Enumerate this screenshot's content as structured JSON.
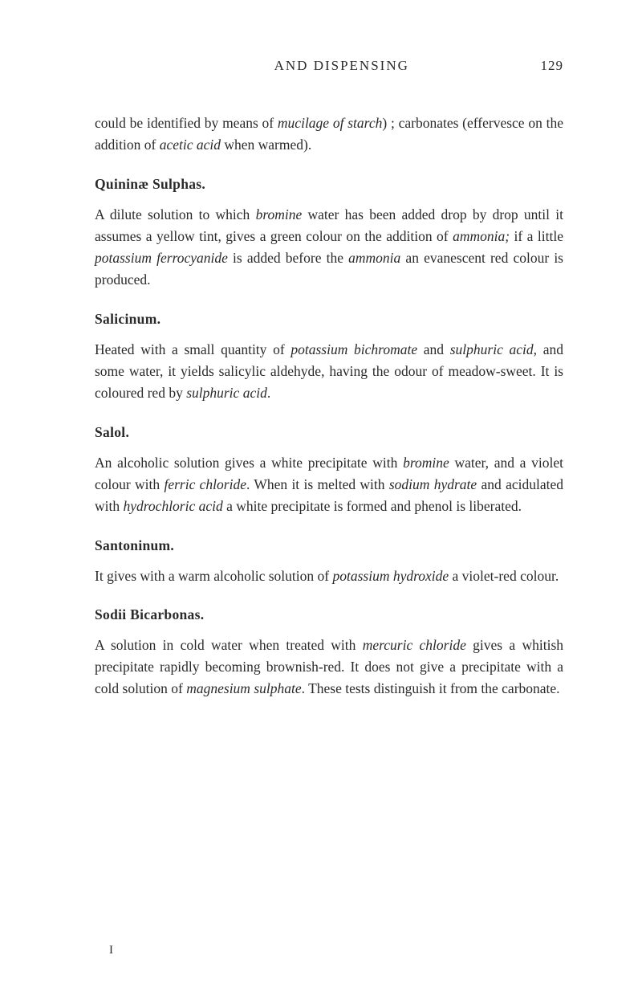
{
  "header": {
    "running_title": "AND DISPENSING",
    "page_number": "129"
  },
  "intro_paragraph": {
    "text_before_italic1": "could be identified by means of ",
    "italic1": "mucilage of starch",
    "text_after_italic1": ") ; carbonates (effervesce on the addition of ",
    "italic2": "acetic acid",
    "text_after_italic2": " when warmed)."
  },
  "sections": {
    "quininae": {
      "heading": "Quininæ Sulphas.",
      "p1_t1": "A dilute solution to which ",
      "p1_i1": "bromine",
      "p1_t2": " water has been added drop by drop until it assumes a yellow tint, gives a green colour on the addition of ",
      "p1_i2": "ammonia;",
      "p1_t3": " if a little ",
      "p1_i3": "potassium ferrocyanide",
      "p1_t4": " is added before the ",
      "p1_i4": "ammonia",
      "p1_t5": " an evanescent red colour is produced."
    },
    "salicinum": {
      "heading": "Salicinum.",
      "p1_t1": "Heated with a small quantity of ",
      "p1_i1": "potassium bichromate",
      "p1_t2": " and ",
      "p1_i2": "sulphuric acid",
      "p1_t3": ", and some water, it yields salicylic aldehyde, having the odour of meadow-sweet. It is coloured red by ",
      "p1_i3": "sulphuric acid",
      "p1_t4": "."
    },
    "salol": {
      "heading": "Salol.",
      "p1_t1": "An alcoholic solution gives a white precipitate with ",
      "p1_i1": "bromine",
      "p1_t2": " water, and a violet colour with ",
      "p1_i2": "ferric chloride",
      "p1_t3": ". When it is melted with ",
      "p1_i3": "sodium hydrate",
      "p1_t4": " and acidulated with ",
      "p1_i4": "hydrochloric acid",
      "p1_t5": " a white precipitate is formed and phenol is liberated."
    },
    "santoninum": {
      "heading": "Santoninum.",
      "p1_t1": "It gives with a warm alcoholic solution of ",
      "p1_i1": "potassium hydroxide",
      "p1_t2": " a violet-red colour."
    },
    "sodii": {
      "heading": "Sodii Bicarbonas.",
      "p1_t1": "A solution in cold water when treated with ",
      "p1_i1": "mercuric chloride",
      "p1_t2": " gives a whitish precipitate rapidly becoming brownish-red. It does not give a precipitate with a cold solution of ",
      "p1_i2": "magnesium sulphate",
      "p1_t3": ". These tests distinguish it from the carbonate."
    }
  },
  "footer_marker": "I"
}
